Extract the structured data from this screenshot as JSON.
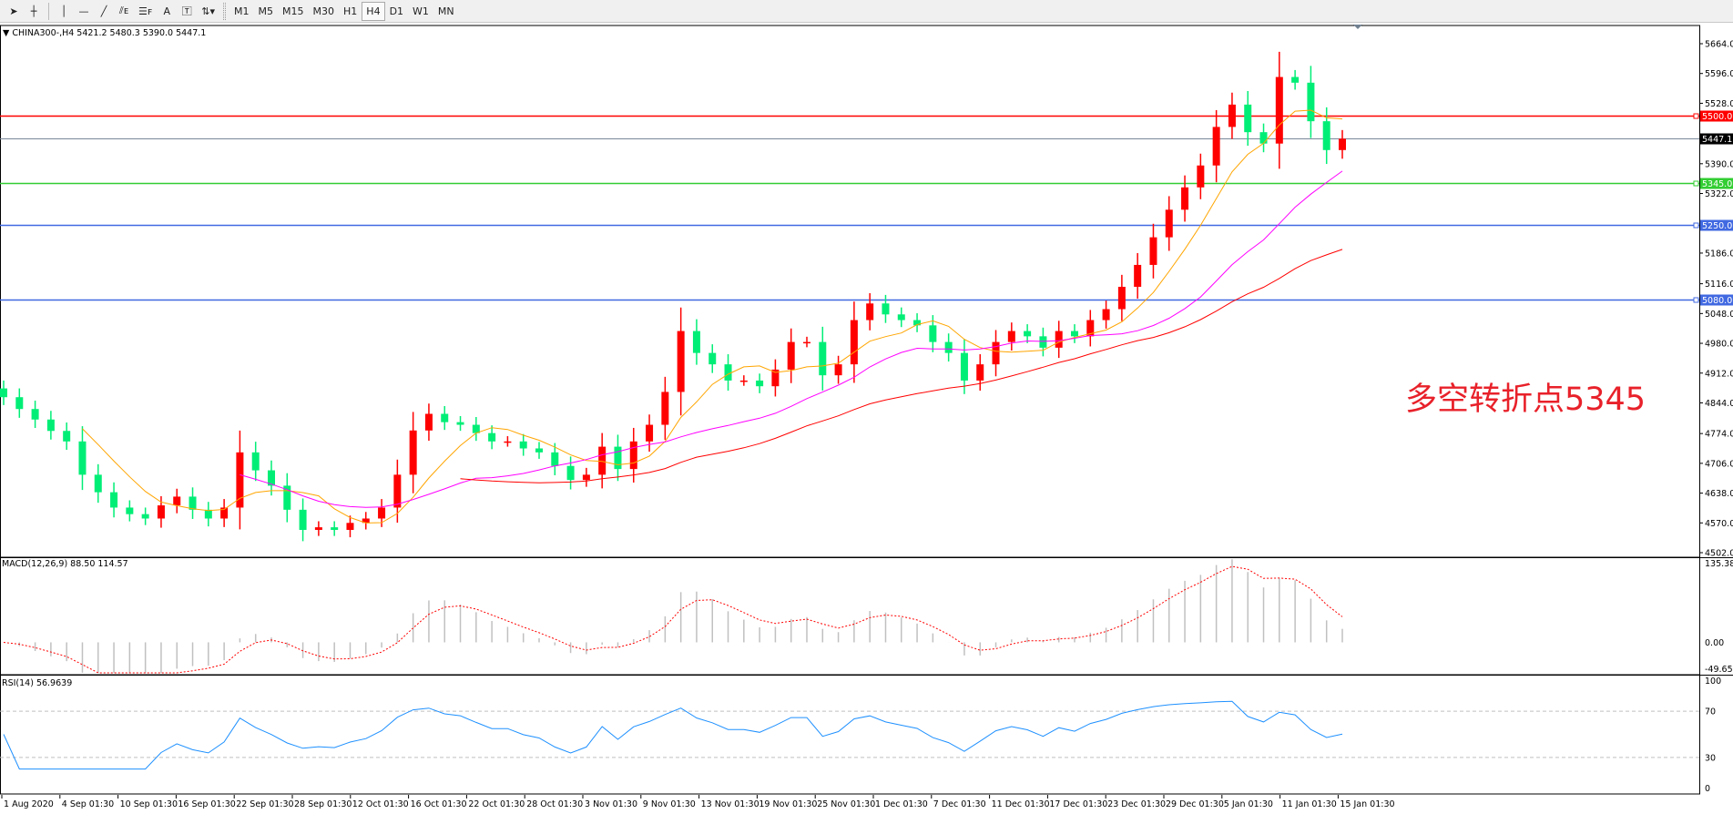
{
  "toolbar": {
    "tools": [
      {
        "icon": "cursor-arrow-icon",
        "glyph": "➤"
      },
      {
        "icon": "crosshair-icon",
        "glyph": "┼"
      },
      {
        "sep": true
      },
      {
        "icon": "vertical-line-icon",
        "glyph": "│"
      },
      {
        "icon": "horizontal-line-icon",
        "glyph": "—"
      },
      {
        "icon": "trendline-icon",
        "glyph": "╱"
      },
      {
        "icon": "equidistant-channel-icon",
        "glyph": "⫽ᴇ"
      },
      {
        "icon": "fibonacci-icon",
        "glyph": "☰ꜰ"
      },
      {
        "icon": "text-icon",
        "glyph": "A"
      },
      {
        "icon": "text-label-icon",
        "glyph": "🅃"
      },
      {
        "icon": "arrows-dropdown-icon",
        "glyph": "⇅▾"
      }
    ],
    "timeframes": [
      "M1",
      "M5",
      "M15",
      "M30",
      "H1",
      "H4",
      "D1",
      "W1",
      "MN"
    ],
    "active_timeframe": "H4"
  },
  "header": {
    "symbol_line": "CHINA300-,H4  5421.2 5480.3 5390.0 5447.1"
  },
  "annotation": "多空转折点5345",
  "chart_data": {
    "type": "candlestick",
    "price_axis": {
      "range": [
        4502,
        5664
      ],
      "ticks": [
        "5664.0",
        "5596.0",
        "5528.0",
        "5390.0",
        "5322.0",
        "5186.0",
        "5116.0",
        "5048.0",
        "4980.0",
        "4912.0",
        "4844.0",
        "4774.0",
        "4706.0",
        "4638.0",
        "4570.0",
        "4502.0"
      ]
    },
    "levels": [
      {
        "price": 5500.0,
        "label": "5500.0",
        "color": "#ff0000"
      },
      {
        "price": 5447.1,
        "label": "5447.1",
        "color": "#778899",
        "current": true
      },
      {
        "price": 5345.0,
        "label": "5345.0",
        "color": "#32cd32"
      },
      {
        "price": 5250.0,
        "label": "5250.0",
        "color": "#4169e1"
      },
      {
        "price": 5080.0,
        "label": "5080.0",
        "color": "#4169e1"
      }
    ],
    "bull_color": "#ff0000",
    "bear_color": "#00ee76",
    "ma_colors": [
      "#ffa500",
      "#ff00ff",
      "#ff0000"
    ],
    "closes": [
      4857,
      4830,
      4806,
      4780,
      4756,
      4680,
      4640,
      4605,
      4590,
      4580,
      4610,
      4630,
      4600,
      4580,
      4605,
      4731,
      4690,
      4655,
      4600,
      4554,
      4560,
      4554,
      4570,
      4580,
      4605,
      4680,
      4781,
      4819,
      4800,
      4794,
      4775,
      4756,
      4756,
      4740,
      4731,
      4700,
      4668,
      4680,
      4744,
      4693,
      4756,
      4794,
      4869,
      5008,
      4958,
      4932,
      4895,
      4895,
      4882,
      4920,
      4983,
      4983,
      4907,
      4932,
      5033,
      5071,
      5046,
      5033,
      5021,
      4983,
      4958,
      4895,
      4932,
      4983,
      5008,
      4996,
      4970,
      5008,
      4996,
      5033,
      5058,
      5109,
      5159,
      5222,
      5285,
      5336,
      5386,
      5474,
      5525,
      5462,
      5436,
      5588,
      5575,
      5487,
      5421.2,
      5447.1
    ],
    "time_labels": [
      "1 Aug 2020",
      "4 Sep 01:30",
      "10 Sep 01:30",
      "16 Sep 01:30",
      "22 Sep 01:30",
      "28 Sep 01:30",
      "12 Oct 01:30",
      "16 Oct 01:30",
      "22 Oct 01:30",
      "28 Oct 01:30",
      "3 Nov 01:30",
      "9 Nov 01:30",
      "13 Nov 01:30",
      "19 Nov 01:30",
      "25 Nov 01:30",
      "1 Dec 01:30",
      "7 Dec 01:30",
      "11 Dec 01:30",
      "17 Dec 01:30",
      "23 Dec 01:30",
      "29 Dec 01:30",
      "5 Jan 01:30",
      "11 Jan 01:30",
      "15 Jan 01:30"
    ],
    "macd": {
      "header": "MACD(12,26,9) 88.50 114.57",
      "ticks": [
        "135.38",
        "0.00",
        "-49.65"
      ],
      "range": [
        -49.65,
        135.38
      ],
      "hist_color": "#c0c0c0",
      "signal_color": "#ff0000"
    },
    "rsi": {
      "header": "RSI(14) 56.9639",
      "ticks": [
        "100",
        "70",
        "30",
        "0"
      ],
      "levels": [
        70,
        30
      ],
      "line_color": "#1e90ff"
    }
  }
}
